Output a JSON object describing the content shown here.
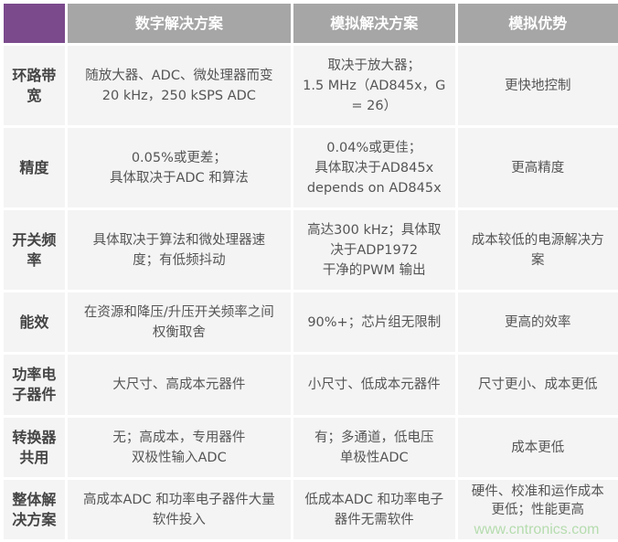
{
  "header": [
    "",
    "数字解决方案",
    "模拟解决方案",
    "模拟优势"
  ],
  "rows": [
    {
      "label": "环路带\n宽",
      "cells": [
        "随放大器、ADC、微处理器而变\n20 kHz，250 kSPS ADC",
        "取决于放大器；\n1.5 MHz（AD845x，G\n= 26）",
        "更快地控制"
      ]
    },
    {
      "label": "精度",
      "cells": [
        "0.05%或更差；\n具体取决于ADC 和算法",
        "0.04%或更佳；\n具体取决于AD845x\ndepends on AD845x",
        "更高精度"
      ]
    },
    {
      "label": "开关频\n率",
      "cells": [
        "具体取决于算法和微处理器速\n度；有低频抖动",
        "高达300 kHz；具体取\n决于ADP1972\n干净的PWM 输出",
        "成本较低的电源解决方\n案"
      ]
    },
    {
      "label": "能效",
      "cells": [
        "在资源和降压/升压开关频率之间\n权衡取舍",
        "90%+；芯片组无限制",
        "更高的效率"
      ]
    },
    {
      "label": "功率电\n子器件",
      "cells": [
        "大尺寸、高成本元器件",
        "小尺寸、低成本元器件",
        "尺寸更小、成本更低"
      ]
    },
    {
      "label": "转换器\n共用",
      "cells": [
        "无；高成本，专用器件\n双极性输入ADC",
        "有；多通道，低电压\n单极性ADC",
        "成本更低"
      ]
    },
    {
      "label": "整体解\n决方案",
      "cells": [
        "高成本ADC 和功率电子器件大量\n软件投入",
        "低成本ADC 和功率电子\n器件无需软件",
        "硬件、校准和运作成本\n更低；性能更高"
      ]
    }
  ],
  "watermark": "www.cntronics.com",
  "colors": {
    "corner": "#7b4a8c",
    "header": "#a6a6a6",
    "cell": "#f4f4f4"
  }
}
